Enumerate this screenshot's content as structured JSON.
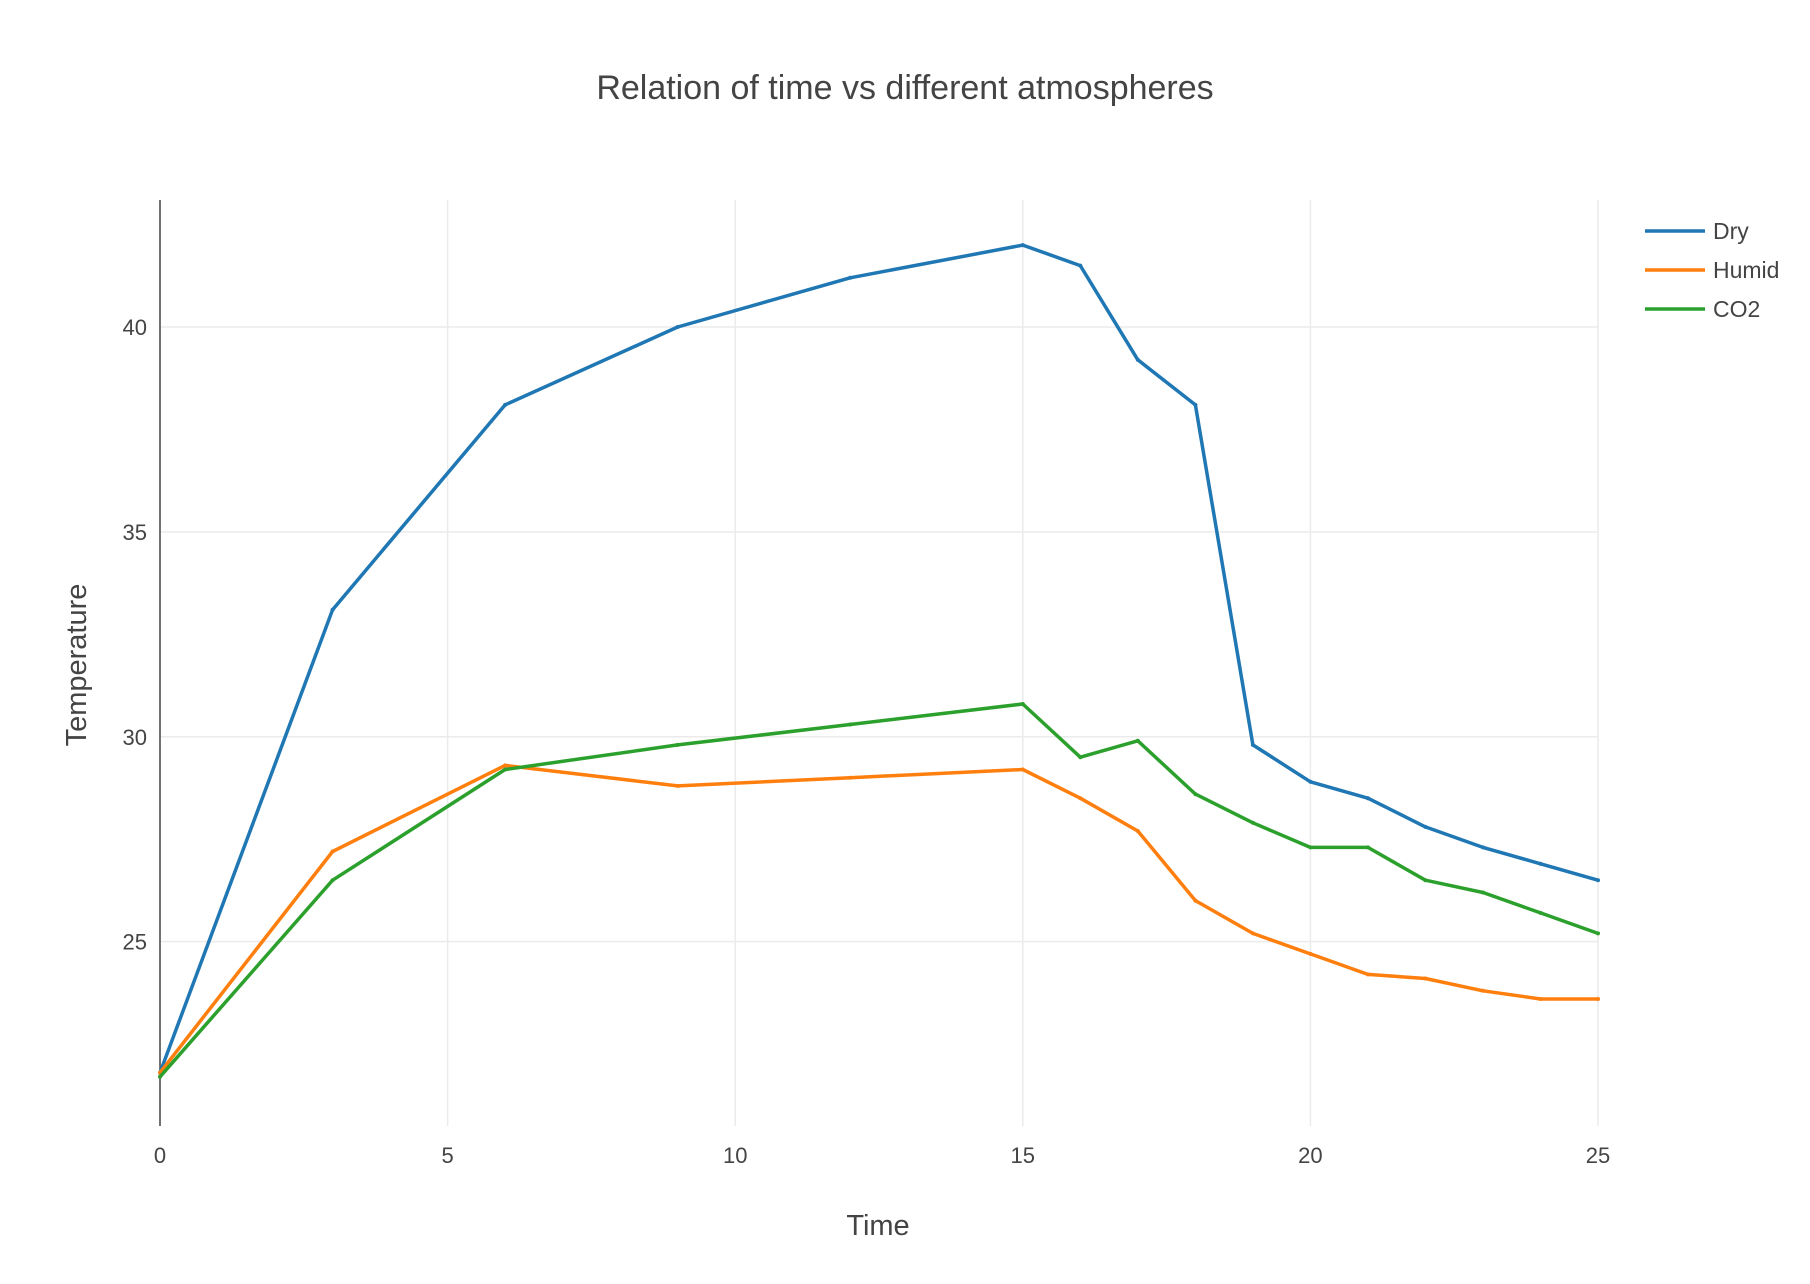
{
  "chart_data": {
    "type": "line",
    "title": "Relation of time vs different atmospheres",
    "xlabel": "Time",
    "ylabel": "Temperature",
    "xlim": [
      0,
      25
    ],
    "ylim": [
      20.5,
      43.1
    ],
    "xticks": [
      0,
      5,
      10,
      15,
      20,
      25
    ],
    "yticks": [
      25,
      30,
      35,
      40
    ],
    "grid": true,
    "legend_position": "top-right",
    "x": [
      0,
      3,
      6,
      9,
      12,
      15,
      16,
      17,
      18,
      19,
      20,
      21,
      22,
      23,
      24,
      25
    ],
    "series": [
      {
        "name": "Dry",
        "color": "#1f77b4",
        "values": [
          21.8,
          33.1,
          38.1,
          40.0,
          41.2,
          42.0,
          41.5,
          39.2,
          38.1,
          29.8,
          28.9,
          28.5,
          27.8,
          27.3,
          26.9,
          26.5
        ]
      },
      {
        "name": "Humid",
        "color": "#ff7f0e",
        "values": [
          21.8,
          27.2,
          29.3,
          28.8,
          29.0,
          29.2,
          28.5,
          27.7,
          26.0,
          25.2,
          24.7,
          24.2,
          24.1,
          23.8,
          23.6,
          23.6
        ]
      },
      {
        "name": "CO2",
        "color": "#2ca02c",
        "values": [
          21.7,
          26.5,
          29.2,
          29.8,
          30.3,
          30.8,
          29.5,
          29.9,
          28.6,
          27.9,
          27.3,
          27.3,
          26.5,
          26.2,
          25.7,
          25.2
        ]
      }
    ]
  }
}
